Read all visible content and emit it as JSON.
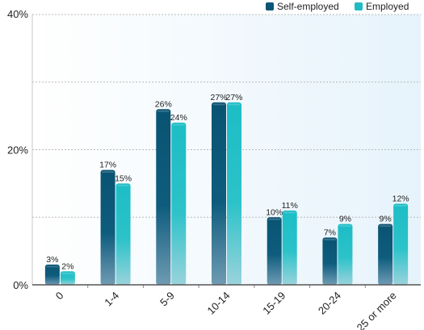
{
  "chart_data": {
    "type": "bar",
    "categories": [
      "0",
      "1-4",
      "5-9",
      "10-14",
      "15-19",
      "20-24",
      "25 or more"
    ],
    "series": [
      {
        "name": "Self-employed",
        "values": [
          3,
          17,
          26,
          27,
          10,
          7,
          9
        ],
        "labels": [
          "3%",
          "17%",
          "26%",
          "27%",
          "10%",
          "7%",
          "9%"
        ],
        "color": "#0b5576"
      },
      {
        "name": "Employed",
        "values": [
          2,
          15,
          24,
          27,
          11,
          9,
          12
        ],
        "labels": [
          "2%",
          "15%",
          "24%",
          "27%",
          "11%",
          "9%",
          "12%"
        ],
        "color": "#1fbcc4"
      }
    ],
    "ylim": [
      0,
      40
    ],
    "yticks": [
      {
        "value": 0,
        "label": "0%"
      },
      {
        "value": 20,
        "label": "20%"
      },
      {
        "value": 40,
        "label": "40%"
      }
    ],
    "gridlines": [
      10,
      20,
      30,
      40
    ],
    "grid": true,
    "legend": "top-right",
    "plot_background": "#eef7fc",
    "xlabel": "",
    "ylabel": "",
    "title": ""
  }
}
